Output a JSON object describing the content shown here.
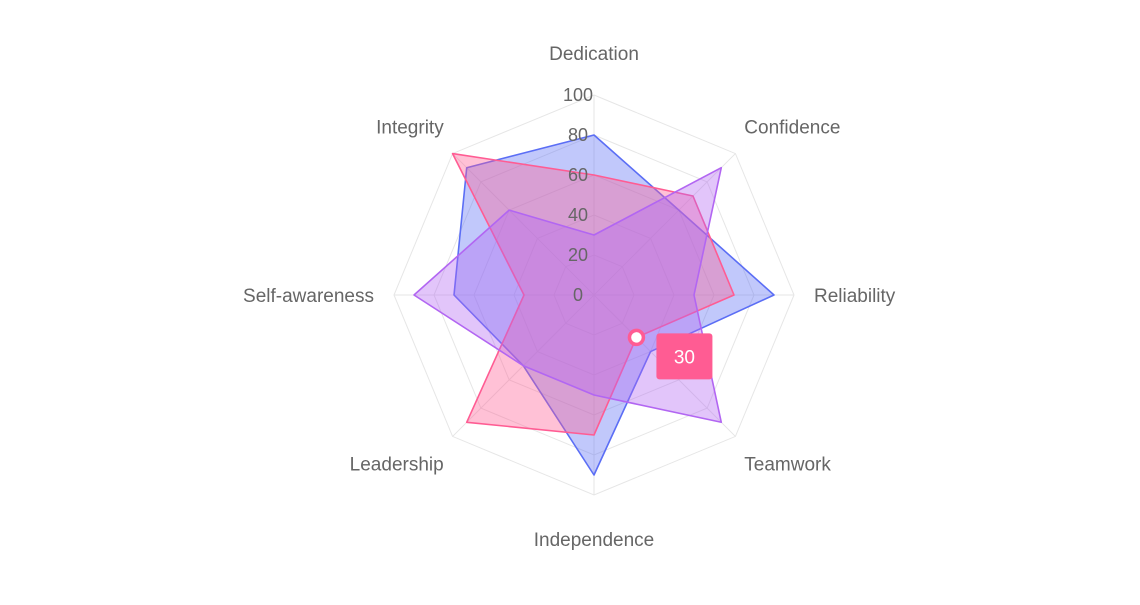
{
  "chart_data": {
    "type": "radar",
    "title": "",
    "categories": [
      "Dedication",
      "Confidence",
      "Reliability",
      "Teamwork",
      "Independence",
      "Leadership",
      "Self-awareness",
      "Integrity"
    ],
    "r_range": [
      0,
      100
    ],
    "r_ticks": [
      0,
      20,
      40,
      60,
      80,
      100
    ],
    "r_tick_labels": [
      "0",
      "20",
      "40",
      "60",
      "80",
      "100"
    ],
    "grid": true,
    "legend": "none",
    "series": [
      {
        "color": "#5b6ef5",
        "values": [
          80,
          60,
          90,
          40,
          90,
          50,
          70,
          90
        ]
      },
      {
        "color": "#ff5c93",
        "values": [
          60,
          70,
          70,
          30,
          70,
          90,
          35,
          100
        ]
      },
      {
        "color": "#b266f2",
        "values": [
          30,
          90,
          50,
          90,
          50,
          50,
          90,
          60
        ]
      }
    ],
    "highlight": {
      "series_index": 1,
      "category": "Teamwork",
      "value": 30,
      "label": "30"
    }
  }
}
